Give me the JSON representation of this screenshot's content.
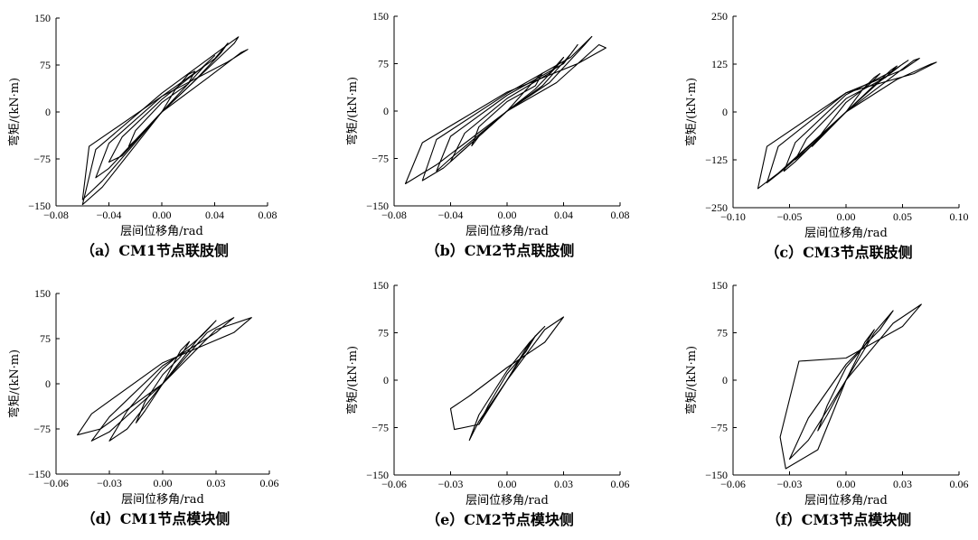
{
  "chart_data": [
    {
      "type": "line",
      "caption": "（a）CM1节点联肢侧",
      "xlabel": "层间位移角/rad",
      "ylabel": "弯矩/(kN·m)",
      "xlim": [
        -0.08,
        0.08
      ],
      "ylim": [
        -150,
        150
      ],
      "xticks": [
        "−0.08",
        "−0.04",
        "0.00",
        "0.04",
        "0.08"
      ],
      "yticks": [
        "150",
        "75",
        "0",
        "−75",
        "−150"
      ],
      "series": [
        {
          "x": [
            0.0,
            0.01,
            0.02,
            0.025,
            0.02,
            0.0,
            -0.02,
            -0.025,
            -0.02,
            0.0
          ],
          "y": [
            0,
            35,
            60,
            65,
            45,
            15,
            -30,
            -55,
            -45,
            0
          ]
        },
        {
          "x": [
            0.0,
            0.02,
            0.035,
            0.04,
            0.03,
            0.0,
            -0.03,
            -0.04,
            -0.03,
            0.0
          ],
          "y": [
            0,
            45,
            80,
            90,
            70,
            20,
            -40,
            -80,
            -70,
            0
          ]
        },
        {
          "x": [
            0.0,
            0.025,
            0.045,
            0.05,
            0.04,
            0.0,
            -0.04,
            -0.05,
            -0.04,
            0.0
          ],
          "y": [
            0,
            50,
            95,
            110,
            85,
            25,
            -50,
            -105,
            -90,
            0
          ]
        },
        {
          "x": [
            0.0,
            0.03,
            0.055,
            0.058,
            0.045,
            0.0,
            -0.05,
            -0.06,
            -0.045,
            0.0
          ],
          "y": [
            0,
            60,
            110,
            120,
            100,
            30,
            -60,
            -148,
            -120,
            0
          ]
        },
        {
          "x": [
            0.0,
            0.035,
            0.06,
            0.065,
            0.05,
            0.0,
            -0.055,
            -0.06,
            -0.045,
            0.0
          ],
          "y": [
            0,
            55,
            95,
            100,
            80,
            25,
            -55,
            -140,
            -110,
            0
          ]
        }
      ]
    },
    {
      "type": "line",
      "caption": "（b）CM2节点联肢侧",
      "xlabel": "层间位移角/rad",
      "ylabel": "弯矩/(kN·m)",
      "xlim": [
        -0.08,
        0.08
      ],
      "ylim": [
        -150,
        150
      ],
      "xticks": [
        "−0.08",
        "−0.04",
        "0.00",
        "0.04",
        "0.08"
      ],
      "yticks": [
        "150",
        "75",
        "0",
        "−75",
        "−150"
      ],
      "series": [
        {
          "x": [
            0.0,
            0.01,
            0.02,
            0.025,
            0.02,
            0.0,
            -0.02,
            -0.025,
            -0.02,
            0.0
          ],
          "y": [
            0,
            25,
            50,
            60,
            40,
            15,
            -25,
            -55,
            -40,
            0
          ]
        },
        {
          "x": [
            0.0,
            0.02,
            0.035,
            0.04,
            0.03,
            0.0,
            -0.03,
            -0.04,
            -0.03,
            0.0
          ],
          "y": [
            0,
            35,
            70,
            85,
            60,
            20,
            -35,
            -80,
            -60,
            0
          ]
        },
        {
          "x": [
            0.0,
            0.025,
            0.045,
            0.05,
            0.04,
            0.0,
            -0.04,
            -0.05,
            -0.04,
            0.0
          ],
          "y": [
            0,
            40,
            90,
            105,
            75,
            25,
            -40,
            -95,
            -75,
            0
          ]
        },
        {
          "x": [
            0.0,
            0.03,
            0.055,
            0.06,
            0.045,
            0.0,
            -0.05,
            -0.06,
            -0.045,
            0.0
          ],
          "y": [
            0,
            45,
            105,
            118,
            85,
            28,
            -45,
            -110,
            -90,
            0
          ]
        },
        {
          "x": [
            0.0,
            0.035,
            0.065,
            0.07,
            0.05,
            0.0,
            -0.06,
            -0.072,
            -0.05,
            0.0
          ],
          "y": [
            0,
            45,
            105,
            100,
            75,
            30,
            -50,
            -115,
            -85,
            0
          ]
        }
      ]
    },
    {
      "type": "line",
      "caption": "（c）CM3节点联肢侧",
      "xlabel": "层间位移角/rad",
      "ylabel": "弯矩/(kN·m)",
      "xlim": [
        -0.1,
        0.1
      ],
      "ylim": [
        -250,
        250
      ],
      "xticks": [
        "−0.10",
        "−0.05",
        "0.00",
        "0.05",
        "0.10"
      ],
      "yticks": [
        "250",
        "125",
        "0",
        "−125",
        "−250"
      ],
      "series": [
        {
          "x": [
            0.0,
            0.015,
            0.025,
            0.03,
            0.02,
            0.0,
            -0.02,
            -0.03,
            -0.025,
            0.0
          ],
          "y": [
            0,
            60,
            90,
            100,
            70,
            25,
            -50,
            -90,
            -75,
            0
          ]
        },
        {
          "x": [
            0.0,
            0.025,
            0.04,
            0.045,
            0.035,
            0.0,
            -0.035,
            -0.045,
            -0.035,
            0.0
          ],
          "y": [
            0,
            70,
            110,
            120,
            90,
            35,
            -70,
            -125,
            -100,
            0
          ]
        },
        {
          "x": [
            0.0,
            0.03,
            0.05,
            0.055,
            0.04,
            0.0,
            -0.045,
            -0.055,
            -0.045,
            0.0
          ],
          "y": [
            0,
            80,
            125,
            135,
            105,
            45,
            -80,
            -155,
            -130,
            0
          ]
        },
        {
          "x": [
            0.0,
            0.04,
            0.06,
            0.065,
            0.05,
            0.0,
            -0.06,
            -0.07,
            -0.055,
            0.0
          ],
          "y": [
            0,
            90,
            135,
            140,
            110,
            50,
            -90,
            -185,
            -150,
            0
          ]
        },
        {
          "x": [
            0.0,
            0.045,
            0.075,
            0.08,
            0.06,
            0.0,
            -0.07,
            -0.078,
            -0.06,
            0.0
          ],
          "y": [
            0,
            85,
            125,
            130,
            100,
            50,
            -90,
            -200,
            -160,
            0
          ]
        }
      ]
    },
    {
      "type": "line",
      "caption": "（d）CM1节点模块侧",
      "xlabel": "层间位移角/rad",
      "ylabel": "弯矩/(kN·m)",
      "xlim": [
        -0.06,
        0.06
      ],
      "ylim": [
        -150,
        150
      ],
      "xticks": [
        "−0.06",
        "−0.03",
        "0.00",
        "0.03",
        "0.06"
      ],
      "yticks": [
        "150",
        "75",
        "0",
        "−75",
        "−150"
      ],
      "series": [
        {
          "x": [
            0.0,
            0.01,
            0.015,
            0.01,
            0.0,
            -0.01,
            -0.015,
            -0.01,
            0.0
          ],
          "y": [
            0,
            55,
            70,
            45,
            15,
            -30,
            -65,
            -45,
            0
          ]
        },
        {
          "x": [
            0.0,
            0.02,
            0.03,
            0.022,
            0.0,
            -0.02,
            -0.03,
            -0.02,
            0.0
          ],
          "y": [
            0,
            75,
            105,
            80,
            25,
            -45,
            -95,
            -75,
            0
          ]
        },
        {
          "x": [
            0.0,
            0.025,
            0.04,
            0.03,
            0.0,
            -0.03,
            -0.04,
            -0.03,
            0.0
          ],
          "y": [
            0,
            85,
            110,
            85,
            30,
            -55,
            -95,
            -80,
            0
          ]
        },
        {
          "x": [
            0.0,
            0.03,
            0.05,
            0.04,
            0.0,
            -0.04,
            -0.048,
            -0.035,
            0.0
          ],
          "y": [
            0,
            90,
            110,
            85,
            35,
            -50,
            -85,
            -75,
            0
          ]
        }
      ]
    },
    {
      "type": "line",
      "caption": "（e）CM2节点模块侧",
      "xlabel": "层间位移角/rad",
      "ylabel": "弯矩/(kN·m)",
      "xlim": [
        -0.06,
        0.06
      ],
      "ylim": [
        -150,
        150
      ],
      "xticks": [
        "−0.06",
        "−0.03",
        "0.00",
        "0.03",
        "0.06"
      ],
      "yticks": [
        "150",
        "75",
        "0",
        "−75",
        "−150"
      ],
      "series": [
        {
          "x": [
            0.0,
            0.01,
            0.015,
            0.01,
            0.0,
            -0.01,
            -0.015,
            -0.01,
            0.0
          ],
          "y": [
            0,
            50,
            70,
            45,
            10,
            -40,
            -70,
            -45,
            0
          ]
        },
        {
          "x": [
            0.0,
            0.015,
            0.02,
            0.012,
            0.0,
            -0.015,
            -0.02,
            -0.015,
            0.0
          ],
          "y": [
            0,
            70,
            85,
            60,
            15,
            -55,
            -95,
            -65,
            0
          ]
        },
        {
          "x": [
            0.0,
            0.02,
            0.03,
            0.02,
            0.0,
            -0.02,
            -0.03,
            -0.028,
            -0.015,
            0.0
          ],
          "y": [
            0,
            80,
            100,
            60,
            20,
            -25,
            -45,
            -78,
            -70,
            0
          ]
        }
      ]
    },
    {
      "type": "line",
      "caption": "（f）CM3节点模块侧",
      "xlabel": "层间位移角/rad",
      "ylabel": "弯矩/(kN·m)",
      "xlim": [
        -0.06,
        0.06
      ],
      "ylim": [
        -150,
        150
      ],
      "xticks": [
        "−0.06",
        "−0.03",
        "0.00",
        "0.03",
        "0.06"
      ],
      "yticks": [
        "150",
        "75",
        "0",
        "−75",
        "−150"
      ],
      "series": [
        {
          "x": [
            0.0,
            0.01,
            0.015,
            0.01,
            0.0,
            -0.01,
            -0.015,
            -0.01,
            0.0
          ],
          "y": [
            0,
            60,
            80,
            55,
            20,
            -40,
            -80,
            -55,
            0
          ]
        },
        {
          "x": [
            0.0,
            0.015,
            0.025,
            0.018,
            0.0,
            -0.02,
            -0.03,
            -0.02,
            0.0
          ],
          "y": [
            0,
            75,
            110,
            80,
            25,
            -60,
            -125,
            -95,
            0
          ]
        },
        {
          "x": [
            0.0,
            0.025,
            0.04,
            0.03,
            0.0,
            -0.025,
            -0.035,
            -0.032,
            -0.015,
            0.0
          ],
          "y": [
            0,
            90,
            120,
            85,
            35,
            30,
            -90,
            -140,
            -110,
            0
          ]
        }
      ]
    }
  ]
}
